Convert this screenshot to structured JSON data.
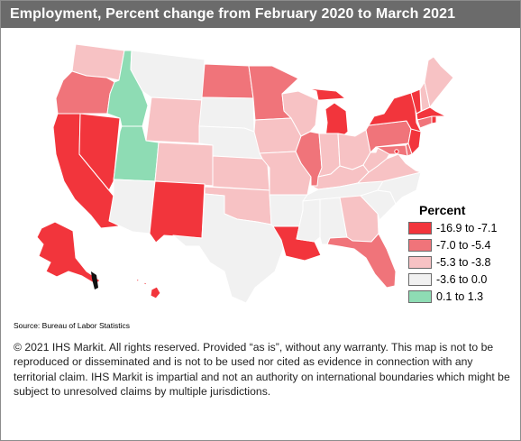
{
  "title": "Employment,  Percent change from February 2020 to March 2021",
  "legend": {
    "title": "Percent",
    "items": [
      {
        "label": "-16.9 to -7.1",
        "color": "#f2353c"
      },
      {
        "label": "-7.0 to -5.4",
        "color": "#f0747a"
      },
      {
        "label": "-5.3 to -3.8",
        "color": "#f7c2c4"
      },
      {
        "label": "-3.6 to 0.0",
        "color": "#f1f1f1"
      },
      {
        "label": "0.1 to 1.3",
        "color": "#8edcb4"
      }
    ]
  },
  "states": [
    {
      "name": "WA",
      "bin": 2
    },
    {
      "name": "OR",
      "bin": 1
    },
    {
      "name": "CA",
      "bin": 0
    },
    {
      "name": "NV",
      "bin": 0
    },
    {
      "name": "ID",
      "bin": 4
    },
    {
      "name": "MT",
      "bin": 3
    },
    {
      "name": "WY",
      "bin": 2
    },
    {
      "name": "UT",
      "bin": 4
    },
    {
      "name": "AZ",
      "bin": 3
    },
    {
      "name": "CO",
      "bin": 2
    },
    {
      "name": "NM",
      "bin": 0
    },
    {
      "name": "ND",
      "bin": 1
    },
    {
      "name": "SD",
      "bin": 3
    },
    {
      "name": "NE",
      "bin": 3
    },
    {
      "name": "KS",
      "bin": 2
    },
    {
      "name": "OK",
      "bin": 2
    },
    {
      "name": "TX",
      "bin": 3
    },
    {
      "name": "MN",
      "bin": 1
    },
    {
      "name": "IA",
      "bin": 2
    },
    {
      "name": "MO",
      "bin": 2
    },
    {
      "name": "AR",
      "bin": 3
    },
    {
      "name": "LA",
      "bin": 0
    },
    {
      "name": "WI",
      "bin": 2
    },
    {
      "name": "IL",
      "bin": 1
    },
    {
      "name": "MI",
      "bin": 0
    },
    {
      "name": "IN",
      "bin": 2
    },
    {
      "name": "OH",
      "bin": 2
    },
    {
      "name": "KY",
      "bin": 2
    },
    {
      "name": "TN",
      "bin": 3
    },
    {
      "name": "MS",
      "bin": 3
    },
    {
      "name": "AL",
      "bin": 3
    },
    {
      "name": "GA",
      "bin": 2
    },
    {
      "name": "FL",
      "bin": 1
    },
    {
      "name": "SC",
      "bin": 3
    },
    {
      "name": "NC",
      "bin": 3
    },
    {
      "name": "VA",
      "bin": 2
    },
    {
      "name": "WV",
      "bin": 2
    },
    {
      "name": "PA",
      "bin": 1
    },
    {
      "name": "NY",
      "bin": 0
    },
    {
      "name": "VT",
      "bin": 0
    },
    {
      "name": "NH",
      "bin": 2
    },
    {
      "name": "ME",
      "bin": 2
    },
    {
      "name": "MA",
      "bin": 0
    },
    {
      "name": "RI",
      "bin": 0
    },
    {
      "name": "CT",
      "bin": 1
    },
    {
      "name": "NJ",
      "bin": 0
    },
    {
      "name": "DE",
      "bin": 1
    },
    {
      "name": "MD",
      "bin": 1
    },
    {
      "name": "DC",
      "bin": 0
    },
    {
      "name": "AK",
      "bin": 0
    },
    {
      "name": "HI",
      "bin": 0
    }
  ],
  "source": "Source: Bureau of Labor Statistics",
  "disclaimer": "© 2021 IHS Markit. All rights reserved. Provided “as is”, without any warranty. This map is not to be reproduced or disseminated and is not to be used nor cited as evidence in connection with any territorial claim. IHS Markit is impartial and not an authority on international boundaries which might be subject to unresolved claims by multiple jurisdictions."
}
